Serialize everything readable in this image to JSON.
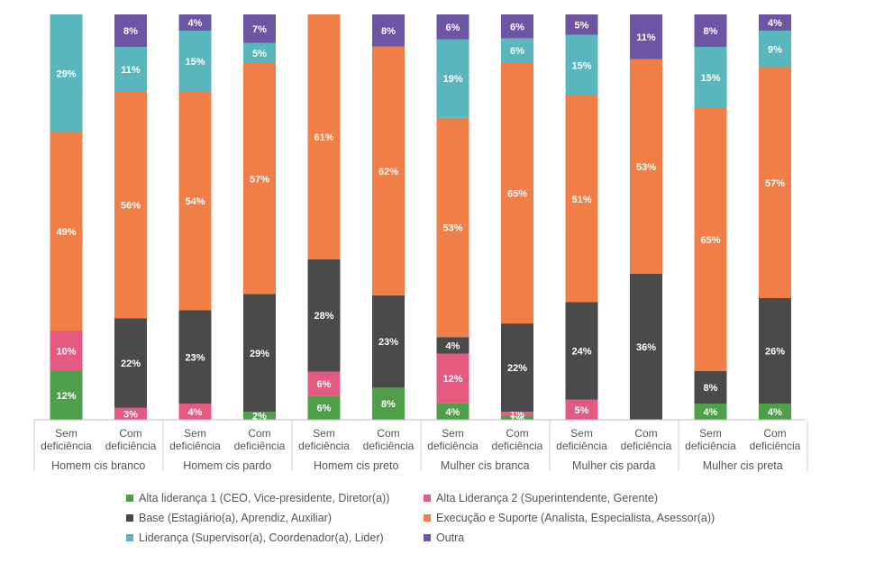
{
  "chart_data": {
    "type": "bar",
    "stacked": true,
    "orientation": "vertical",
    "ylim": [
      0,
      100
    ],
    "groups": [
      "Homem cis branco",
      "Homem cis pardo",
      "Homem cis preto",
      "Mulher cis branca",
      "Mulher cis parda",
      "Mulher cis preta"
    ],
    "subcategories": [
      "Sem\ndeficiência",
      "Com\ndeficiência"
    ],
    "series": [
      {
        "name": "Alta liderança 1 (CEO, Vice-presidente, Diretor(a))",
        "color": "#4f9e4a",
        "values": [
          12,
          0,
          0,
          2,
          6,
          8,
          4,
          1,
          0,
          0,
          4,
          4
        ],
        "labels": [
          "12%",
          "",
          "",
          "2%",
          "6%",
          "8%",
          "4%",
          "1%",
          "",
          "",
          "4%",
          "4%"
        ]
      },
      {
        "name": "Alta Liderança 2 (Superintendente, Gerente)",
        "color": "#e55a80",
        "values": [
          10,
          3,
          4,
          0,
          6,
          0,
          12,
          1,
          5,
          0,
          0,
          0
        ],
        "labels": [
          "10%",
          "3%",
          "4%",
          "",
          "6%",
          "",
          "12%",
          "1%",
          "5%",
          "",
          "",
          ""
        ]
      },
      {
        "name": "Base (Estagiário(a), Aprendiz, Auxiliar)",
        "color": "#4a4a4a",
        "values": [
          0,
          22,
          23,
          29,
          28,
          23,
          4,
          22,
          24,
          36,
          8,
          26
        ],
        "labels": [
          "",
          "22%",
          "23%",
          "29%",
          "28%",
          "23%",
          "4%",
          "22%",
          "24%",
          "36%",
          "8%",
          "26%"
        ]
      },
      {
        "name": "Execução e Suporte (Analista, Especialista, Asessor(a))",
        "color": "#ef7f47",
        "values": [
          49,
          56,
          54,
          57,
          61,
          62,
          53,
          65,
          51,
          53,
          65,
          57
        ],
        "labels": [
          "49%",
          "56%",
          "54%",
          "57%",
          "61%",
          "62%",
          "53%",
          "65%",
          "51%",
          "53%",
          "65%",
          "57%"
        ]
      },
      {
        "name": "Liderança (Supervisor(a), Coordenador(a), Lider)",
        "color": "#5ab6bd",
        "values": [
          29,
          11,
          15,
          5,
          0,
          0,
          19,
          6,
          15,
          0,
          15,
          9
        ],
        "labels": [
          "29%",
          "11%",
          "15%",
          "5%",
          "",
          "",
          "19%",
          "6%",
          "15%",
          "",
          "15%",
          "9%"
        ]
      },
      {
        "name": "Outra",
        "color": "#6c55a3",
        "values": [
          0,
          8,
          4,
          7,
          0,
          8,
          6,
          6,
          5,
          11,
          8,
          4
        ],
        "labels": [
          "",
          "8%",
          "4%",
          "7%",
          "",
          "8%",
          "6%",
          "6%",
          "5%",
          "11%",
          "8%",
          "4%"
        ]
      }
    ]
  }
}
